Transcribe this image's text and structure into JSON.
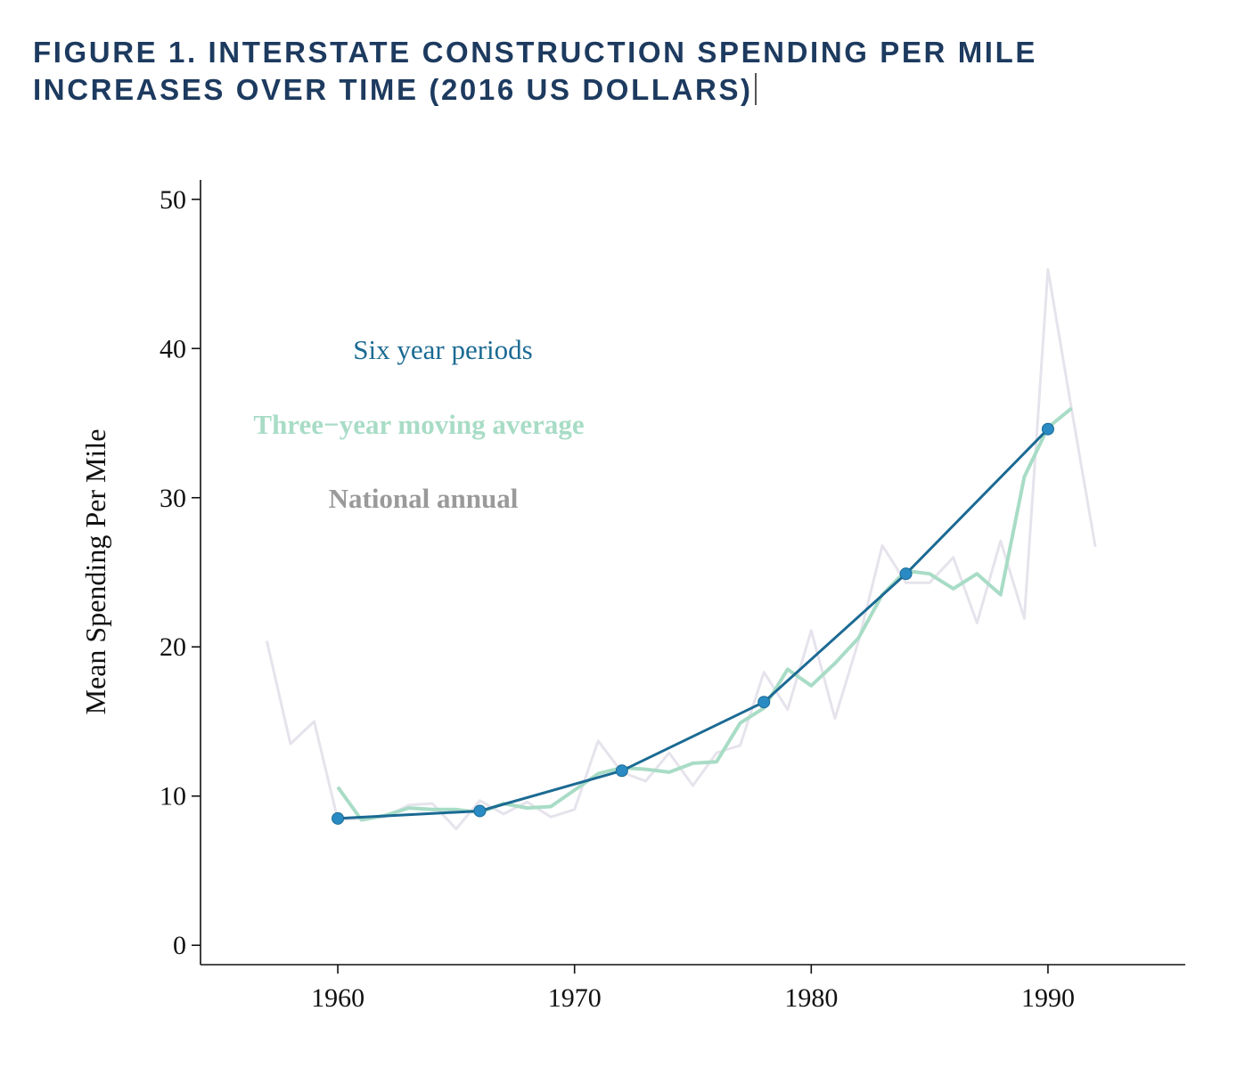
{
  "title": {
    "line1": "FIGURE 1.  INTERSTATE CONSTRUCTION SPENDING PER MILE",
    "line2": "INCREASES OVER TIME (2016 US DOLLARS)"
  },
  "chart_data": {
    "type": "line",
    "title": "Figure 1. Interstate Construction Spending Per Mile Increases Over Time (2016 US Dollars)",
    "xlabel": "",
    "ylabel": "Mean Spending Per Mile",
    "xlim": [
      1954.2,
      1995.8
    ],
    "ylim": [
      -1.3,
      51.3
    ],
    "xticks": [
      1960,
      1970,
      1980,
      1990
    ],
    "yticks": [
      0,
      10,
      20,
      30,
      40,
      50
    ],
    "grid": false,
    "legend": {
      "placement": "top-left",
      "style": "text labels"
    },
    "colors": {
      "six": "#1b6a93",
      "six_marker": "#2a8bc4",
      "three": "#a8dcc6",
      "annual": "#e6e3ec",
      "annual_label": "#9a9a9a",
      "title": "#1d3a5f"
    },
    "series": [
      {
        "name": "National annual",
        "key": "annual",
        "x": [
          1957,
          1958,
          1959,
          1960,
          1961,
          1962,
          1963,
          1964,
          1965,
          1966,
          1967,
          1968,
          1969,
          1970,
          1971,
          1972,
          1973,
          1974,
          1975,
          1976,
          1977,
          1978,
          1979,
          1980,
          1981,
          1982,
          1983,
          1984,
          1985,
          1986,
          1987,
          1988,
          1989,
          1990,
          1991,
          1992
        ],
        "y": [
          20.4,
          13.5,
          15.0,
          8.4,
          8.5,
          8.6,
          9.4,
          9.5,
          7.8,
          9.7,
          8.8,
          9.6,
          8.6,
          9.1,
          13.7,
          11.6,
          11.0,
          12.9,
          10.7,
          12.9,
          13.4,
          18.3,
          15.8,
          21.1,
          15.2,
          20.4,
          26.8,
          24.3,
          24.3,
          26.0,
          21.6,
          27.1,
          21.9,
          45.3,
          35.9,
          26.7
        ]
      },
      {
        "name": "Three−year moving average",
        "key": "three",
        "x": [
          1960,
          1961,
          1962,
          1963,
          1964,
          1965,
          1966,
          1967,
          1968,
          1969,
          1970,
          1971,
          1972,
          1973,
          1974,
          1975,
          1976,
          1977,
          1978,
          1979,
          1980,
          1981,
          1982,
          1983,
          1984,
          1985,
          1986,
          1987,
          1988,
          1989,
          1990,
          1991
        ],
        "y": [
          10.6,
          8.4,
          8.7,
          9.2,
          9.1,
          9.1,
          8.9,
          9.5,
          9.2,
          9.3,
          10.4,
          11.5,
          11.9,
          11.8,
          11.6,
          12.2,
          12.3,
          14.9,
          15.9,
          18.5,
          17.4,
          18.9,
          20.6,
          23.5,
          25.1,
          24.9,
          23.9,
          24.9,
          23.5,
          31.4,
          34.7,
          36.0
        ]
      },
      {
        "name": "Six year periods",
        "key": "six",
        "x": [
          1960,
          1966,
          1972,
          1978,
          1984,
          1990
        ],
        "y": [
          8.5,
          9.0,
          11.7,
          16.3,
          24.9,
          34.6
        ]
      }
    ]
  }
}
